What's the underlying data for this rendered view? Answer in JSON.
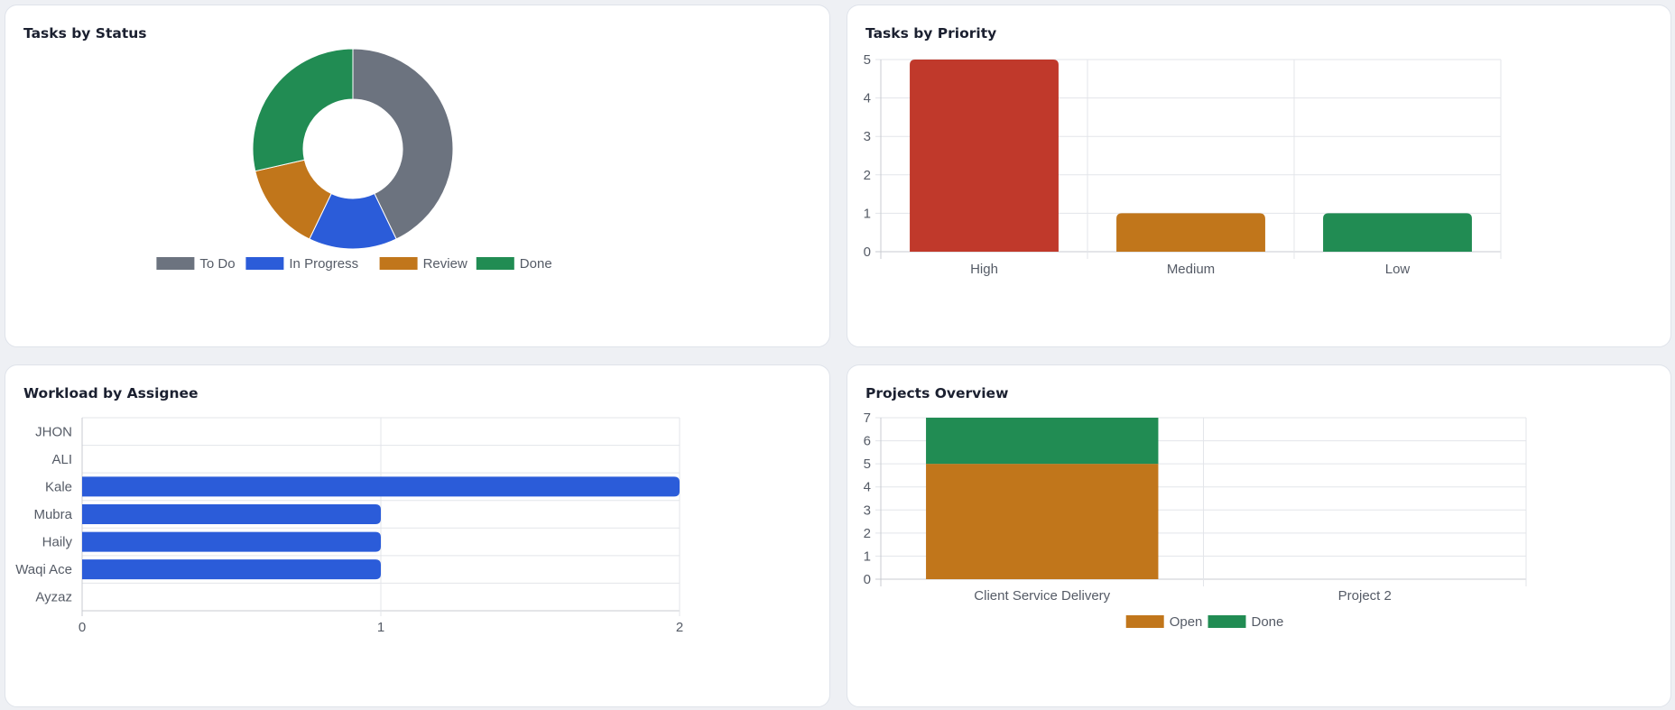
{
  "cards": {
    "status": {
      "title": "Tasks by Status",
      "chart_data": {
        "type": "pie",
        "donut": true,
        "categories": [
          "To Do",
          "In Progress",
          "Review",
          "Done"
        ],
        "values": [
          6,
          2,
          2,
          4
        ],
        "colors": [
          "#6c737f",
          "#2b5cd9",
          "#c1761b",
          "#218c53"
        ],
        "legend": "bottom"
      }
    },
    "priority": {
      "title": "Tasks by Priority",
      "chart_data": {
        "type": "bar",
        "categories": [
          "High",
          "Medium",
          "Low"
        ],
        "values": [
          5,
          1,
          1
        ],
        "colors": [
          "#c0392b",
          "#c1761b",
          "#218c53"
        ],
        "ylim": [
          0,
          5
        ],
        "yticks": [
          0,
          1,
          2,
          3,
          4,
          5
        ],
        "grid": true
      }
    },
    "workload": {
      "title": "Workload by Assignee",
      "chart_data": {
        "type": "bar",
        "orientation": "horizontal",
        "categories": [
          "JHON",
          "ALI",
          "Kale",
          "Mubra",
          "Haily",
          "Waqi Ace",
          "Ayzaz"
        ],
        "values": [
          0,
          0,
          2,
          1,
          1,
          1,
          0
        ],
        "color": "#2b5cd9",
        "xlim": [
          0,
          2
        ],
        "xticks": [
          0,
          1,
          2
        ],
        "grid": true
      }
    },
    "projects": {
      "title": "Projects Overview",
      "chart_data": {
        "type": "bar",
        "stacked": true,
        "categories": [
          "Client Service Delivery",
          "Project 2"
        ],
        "series": [
          {
            "name": "Open",
            "values": [
              5,
              0
            ],
            "color": "#c1761b"
          },
          {
            "name": "Done",
            "values": [
              2,
              0
            ],
            "color": "#218c53"
          }
        ],
        "ylim": [
          0,
          7
        ],
        "yticks": [
          0,
          1,
          2,
          3,
          4,
          5,
          6,
          7
        ],
        "legend": "bottom",
        "grid": true
      }
    }
  }
}
